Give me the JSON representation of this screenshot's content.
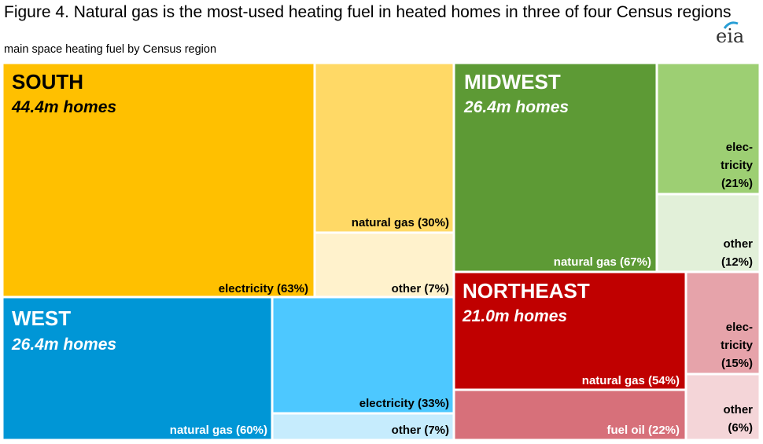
{
  "header": {
    "title": "Figure 4. Natural gas is the most-used heating fuel in heated homes in three of four Census regions",
    "subtitle": "main space heating fuel by Census region",
    "logo_text": "eia"
  },
  "chart_data": {
    "type": "treemap",
    "title": "Figure 4. Natural gas is the most-used heating fuel in heated homes in three of four Census regions",
    "subtitle": "main space heating fuel by Census region",
    "unit": "million homes",
    "regions": [
      {
        "name": "SOUTH",
        "homes_millions": 44.4,
        "homes_label": "44.4m homes",
        "segments": [
          {
            "fuel": "electricity",
            "percent": 63,
            "label": "electricity (63%)",
            "color": "#FFC000"
          },
          {
            "fuel": "natural gas",
            "percent": 30,
            "label": "natural gas (30%)",
            "color": "#FFD966"
          },
          {
            "fuel": "other",
            "percent": 7,
            "label": "other (7%)",
            "color": "#FFF2CC"
          }
        ]
      },
      {
        "name": "WEST",
        "homes_millions": 26.4,
        "homes_label": "26.4m homes",
        "segments": [
          {
            "fuel": "natural gas",
            "percent": 60,
            "label": "natural gas (60%)",
            "color": "#0096D6"
          },
          {
            "fuel": "electricity",
            "percent": 33,
            "label": "electricity (33%)",
            "color": "#4DC8FF"
          },
          {
            "fuel": "other",
            "percent": 7,
            "label": "other (7%)",
            "color": "#C6ECFD"
          }
        ]
      },
      {
        "name": "MIDWEST",
        "homes_millions": 26.4,
        "homes_label": "26.4m homes",
        "segments": [
          {
            "fuel": "natural gas",
            "percent": 67,
            "label": "natural gas (67%)",
            "color": "#5D9A35"
          },
          {
            "fuel": "electricity",
            "percent": 21,
            "label_lines": [
              "elec-",
              "tricity",
              "(21%)"
            ],
            "color": "#9DCF73"
          },
          {
            "fuel": "other",
            "percent": 12,
            "label_lines": [
              "other",
              "(12%)"
            ],
            "color": "#E2F0D9"
          }
        ]
      },
      {
        "name": "NORTHEAST",
        "homes_millions": 21.0,
        "homes_label": "21.0m homes",
        "segments": [
          {
            "fuel": "natural gas",
            "percent": 54,
            "label": "natural gas (54%)",
            "color": "#C00000"
          },
          {
            "fuel": "fuel oil",
            "percent": 22,
            "label": "fuel oil (22%)",
            "color": "#D7707A"
          },
          {
            "fuel": "electricity",
            "percent": 15,
            "label_lines": [
              "elec-",
              "tricity",
              "(15%)"
            ],
            "color": "#E6A3AA"
          },
          {
            "fuel": "other",
            "percent": 6,
            "label_lines": [
              "other",
              "(6%)"
            ],
            "color": "#F4D5D8"
          }
        ]
      }
    ]
  }
}
